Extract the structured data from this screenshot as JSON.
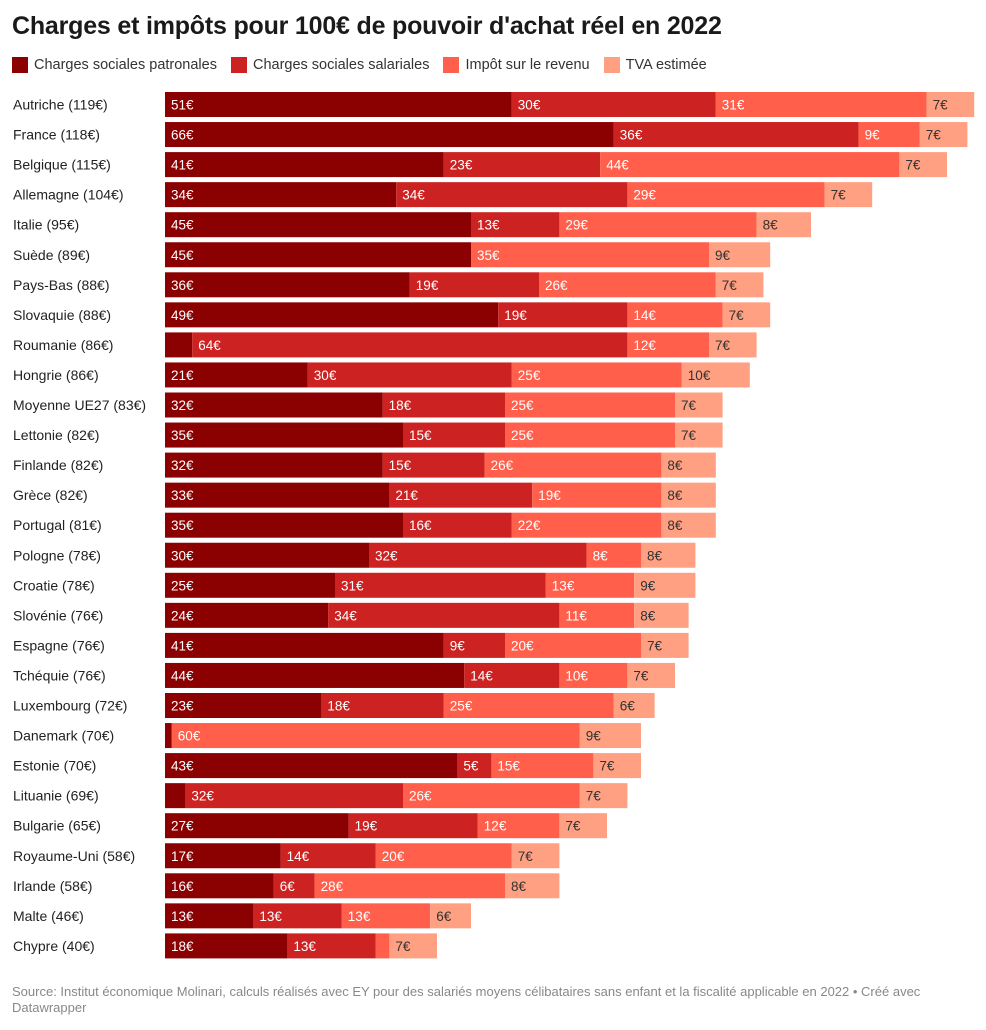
{
  "source": "Source: Institut économique Molinari, calculs réalisés avec EY pour des salariés moyens célibataires sans enfant et la fiscalité applicable en 2022 • Créé avec Datawrapper",
  "chart_data": {
    "type": "bar",
    "orientation": "horizontal",
    "stacked": true,
    "title": "Charges et impôts pour 100€ de pouvoir d'achat réel en 2022",
    "legend_position": "top",
    "grid": false,
    "value_suffix": "€",
    "categories": [
      "Autriche (119€)",
      "France (118€)",
      "Belgique (115€)",
      "Allemagne (104€)",
      "Italie (95€)",
      "Suède (89€)",
      "Pays-Bas (88€)",
      "Slovaquie (88€)",
      "Roumanie (86€)",
      "Hongrie (86€)",
      "Moyenne UE27 (83€)",
      "Lettonie (82€)",
      "Finlande (82€)",
      "Grèce (82€)",
      "Portugal (81€)",
      "Pologne (78€)",
      "Croatie (78€)",
      "Slovénie (76€)",
      "Espagne (76€)",
      "Tchéquie (76€)",
      "Luxembourg (72€)",
      "Danemark (70€)",
      "Estonie (70€)",
      "Lituanie (69€)",
      "Bulgarie (65€)",
      "Royaume-Uni (58€)",
      "Irlande (58€)",
      "Malte (46€)",
      "Chypre (40€)"
    ],
    "series": [
      {
        "name": "Charges sociales patronales",
        "color": "#8b0000",
        "label_color": "#ffffff",
        "values": [
          51,
          66,
          41,
          34,
          45,
          45,
          36,
          49,
          4,
          21,
          32,
          35,
          32,
          33,
          35,
          30,
          25,
          24,
          41,
          44,
          23,
          1,
          43,
          3,
          27,
          17,
          16,
          13,
          18
        ],
        "labels": [
          "51€",
          "66€",
          "41€",
          "34€",
          "45€",
          "45€",
          "36€",
          "49€",
          "",
          "21€",
          "32€",
          "35€",
          "32€",
          "33€",
          "35€",
          "30€",
          "25€",
          "24€",
          "41€",
          "44€",
          "23€",
          "",
          "43€",
          "",
          "27€",
          "17€",
          "16€",
          "13€",
          "18€"
        ]
      },
      {
        "name": "Charges sociales salariales",
        "color": "#cc2222",
        "label_color": "#ffffff",
        "values": [
          30,
          36,
          23,
          34,
          13,
          0,
          19,
          19,
          64,
          30,
          18,
          15,
          15,
          21,
          16,
          32,
          31,
          34,
          9,
          14,
          18,
          0,
          5,
          32,
          19,
          14,
          6,
          13,
          13
        ],
        "labels": [
          "30€",
          "36€",
          "23€",
          "34€",
          "13€",
          "",
          "19€",
          "19€",
          "64€",
          "30€",
          "18€",
          "15€",
          "15€",
          "21€",
          "16€",
          "32€",
          "31€",
          "34€",
          "9€",
          "14€",
          "18€",
          "",
          "5€",
          "32€",
          "19€",
          "14€",
          "6€",
          "13€",
          "13€"
        ]
      },
      {
        "name": "Impôt sur le revenu",
        "color": "#ff5f4b",
        "label_color": "#ffffff",
        "values": [
          31,
          9,
          44,
          29,
          29,
          35,
          26,
          14,
          12,
          25,
          25,
          25,
          26,
          19,
          22,
          8,
          13,
          11,
          20,
          10,
          25,
          60,
          15,
          26,
          12,
          20,
          28,
          13,
          2
        ],
        "labels": [
          "31€",
          "9€",
          "44€",
          "29€",
          "29€",
          "35€",
          "26€",
          "14€",
          "12€",
          "25€",
          "25€",
          "25€",
          "26€",
          "19€",
          "22€",
          "8€",
          "13€",
          "11€",
          "20€",
          "10€",
          "25€",
          "60€",
          "15€",
          "26€",
          "12€",
          "20€",
          "28€",
          "13€",
          ""
        ]
      },
      {
        "name": "TVA estimée",
        "color": "#ffa082",
        "label_color": "#333333",
        "values": [
          7,
          7,
          7,
          7,
          8,
          9,
          7,
          7,
          7,
          10,
          7,
          7,
          8,
          8,
          8,
          8,
          9,
          8,
          7,
          7,
          6,
          9,
          7,
          7,
          7,
          7,
          8,
          6,
          7
        ],
        "labels": [
          "7€",
          "7€",
          "7€",
          "7€",
          "8€",
          "9€",
          "7€",
          "7€",
          "7€",
          "10€",
          "7€",
          "7€",
          "8€",
          "8€",
          "8€",
          "8€",
          "9€",
          "8€",
          "7€",
          "7€",
          "6€",
          "9€",
          "7€",
          "7€",
          "7€",
          "7€",
          "8€",
          "6€",
          "7€"
        ]
      }
    ]
  }
}
